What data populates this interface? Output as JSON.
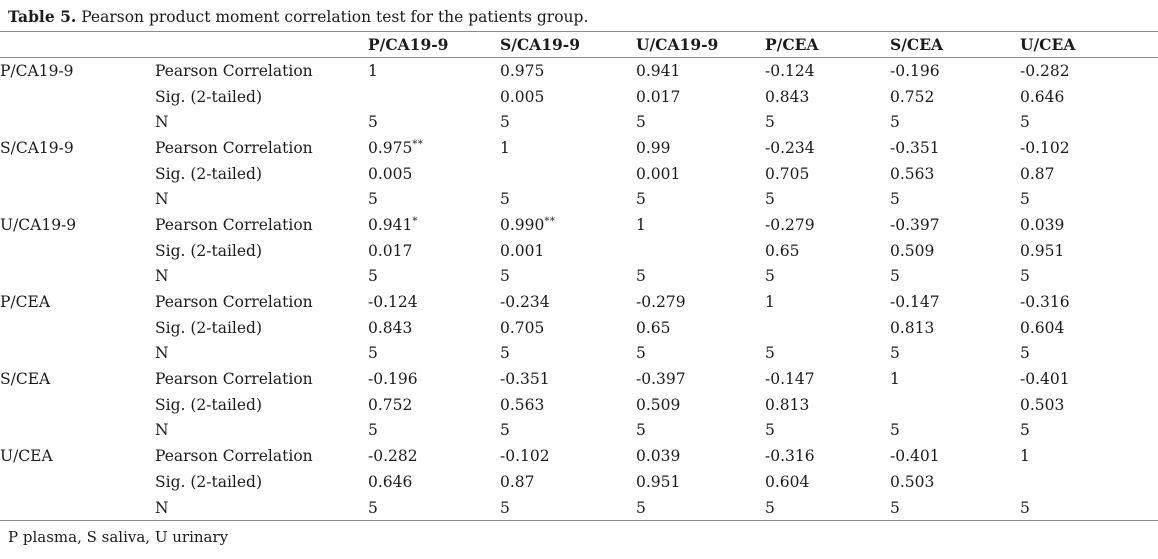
{
  "title": {
    "label": "Table 5.",
    "caption": "Pearson product moment correlation test for the patients group."
  },
  "footnote": "P plasma, S saliva, U urinary",
  "colors": {
    "background": "#ffffff",
    "text": "#1b1b1b",
    "rule": "#8c8c8c"
  },
  "table": {
    "col_headers": [
      "P/CA19-9",
      "S/CA19-9",
      "U/CA19-9",
      "P/CEA",
      "S/CEA",
      "U/CEA"
    ],
    "groups": [
      {
        "name": "P/CA19-9",
        "rows": [
          {
            "label": "Pearson Correlation",
            "cells": [
              {
                "v": "1"
              },
              {
                "v": "0.975"
              },
              {
                "v": "0.941"
              },
              {
                "v": "-0.124"
              },
              {
                "v": "-0.196"
              },
              {
                "v": "-0.282"
              }
            ]
          },
          {
            "label": "Sig. (2-tailed)",
            "cells": [
              {
                "v": ""
              },
              {
                "v": "0.005"
              },
              {
                "v": "0.017"
              },
              {
                "v": "0.843"
              },
              {
                "v": "0.752"
              },
              {
                "v": "0.646"
              }
            ]
          },
          {
            "label": "N",
            "cells": [
              {
                "v": "5"
              },
              {
                "v": "5"
              },
              {
                "v": "5"
              },
              {
                "v": "5"
              },
              {
                "v": "5"
              },
              {
                "v": "5"
              }
            ]
          }
        ]
      },
      {
        "name": "S/CA19-9",
        "rows": [
          {
            "label": "Pearson Correlation",
            "cells": [
              {
                "v": "0.975",
                "s": "**"
              },
              {
                "v": "1"
              },
              {
                "v": "0.99"
              },
              {
                "v": "-0.234"
              },
              {
                "v": "-0.351"
              },
              {
                "v": "-0.102"
              }
            ]
          },
          {
            "label": "Sig. (2-tailed)",
            "cells": [
              {
                "v": "0.005"
              },
              {
                "v": ""
              },
              {
                "v": "0.001"
              },
              {
                "v": "0.705"
              },
              {
                "v": "0.563"
              },
              {
                "v": "0.87"
              }
            ]
          },
          {
            "label": "N",
            "cells": [
              {
                "v": "5"
              },
              {
                "v": "5"
              },
              {
                "v": "5"
              },
              {
                "v": "5"
              },
              {
                "v": "5"
              },
              {
                "v": "5"
              }
            ]
          }
        ]
      },
      {
        "name": "U/CA19-9",
        "rows": [
          {
            "label": "Pearson Correlation",
            "cells": [
              {
                "v": "0.941",
                "s": "*"
              },
              {
                "v": "0.990",
                "s": "**"
              },
              {
                "v": "1"
              },
              {
                "v": "-0.279"
              },
              {
                "v": "-0.397"
              },
              {
                "v": "0.039"
              }
            ]
          },
          {
            "label": "Sig. (2-tailed)",
            "cells": [
              {
                "v": "0.017"
              },
              {
                "v": "0.001"
              },
              {
                "v": ""
              },
              {
                "v": "0.65"
              },
              {
                "v": "0.509"
              },
              {
                "v": "0.951"
              }
            ]
          },
          {
            "label": "N",
            "cells": [
              {
                "v": "5"
              },
              {
                "v": "5"
              },
              {
                "v": "5"
              },
              {
                "v": "5"
              },
              {
                "v": "5"
              },
              {
                "v": "5"
              }
            ]
          }
        ]
      },
      {
        "name": "P/CEA",
        "rows": [
          {
            "label": "Pearson Correlation",
            "cells": [
              {
                "v": "-0.124"
              },
              {
                "v": "-0.234"
              },
              {
                "v": "-0.279"
              },
              {
                "v": "1"
              },
              {
                "v": "-0.147"
              },
              {
                "v": "-0.316"
              }
            ]
          },
          {
            "label": "Sig. (2-tailed)",
            "cells": [
              {
                "v": "0.843"
              },
              {
                "v": "0.705"
              },
              {
                "v": "0.65"
              },
              {
                "v": ""
              },
              {
                "v": "0.813"
              },
              {
                "v": "0.604"
              }
            ]
          },
          {
            "label": "N",
            "cells": [
              {
                "v": "5"
              },
              {
                "v": "5"
              },
              {
                "v": "5"
              },
              {
                "v": "5"
              },
              {
                "v": "5"
              },
              {
                "v": "5"
              }
            ]
          }
        ]
      },
      {
        "name": "S/CEA",
        "rows": [
          {
            "label": "Pearson Correlation",
            "cells": [
              {
                "v": "-0.196"
              },
              {
                "v": "-0.351"
              },
              {
                "v": "-0.397"
              },
              {
                "v": "-0.147"
              },
              {
                "v": "1"
              },
              {
                "v": "-0.401"
              }
            ]
          },
          {
            "label": "Sig. (2-tailed)",
            "cells": [
              {
                "v": "0.752"
              },
              {
                "v": "0.563"
              },
              {
                "v": "0.509"
              },
              {
                "v": "0.813"
              },
              {
                "v": ""
              },
              {
                "v": "0.503"
              }
            ]
          },
          {
            "label": "N",
            "cells": [
              {
                "v": "5"
              },
              {
                "v": "5"
              },
              {
                "v": "5"
              },
              {
                "v": "5"
              },
              {
                "v": "5"
              },
              {
                "v": "5"
              }
            ]
          }
        ]
      },
      {
        "name": "U/CEA",
        "rows": [
          {
            "label": "Pearson Correlation",
            "cells": [
              {
                "v": "-0.282"
              },
              {
                "v": "-0.102"
              },
              {
                "v": "0.039"
              },
              {
                "v": "-0.316"
              },
              {
                "v": "-0.401"
              },
              {
                "v": "1"
              }
            ]
          },
          {
            "label": "Sig. (2-tailed)",
            "cells": [
              {
                "v": "0.646"
              },
              {
                "v": "0.87"
              },
              {
                "v": "0.951"
              },
              {
                "v": "0.604"
              },
              {
                "v": "0.503"
              },
              {
                "v": ""
              }
            ]
          },
          {
            "label": "N",
            "cells": [
              {
                "v": "5"
              },
              {
                "v": "5"
              },
              {
                "v": "5"
              },
              {
                "v": "5"
              },
              {
                "v": "5"
              },
              {
                "v": "5"
              }
            ]
          }
        ]
      }
    ]
  }
}
